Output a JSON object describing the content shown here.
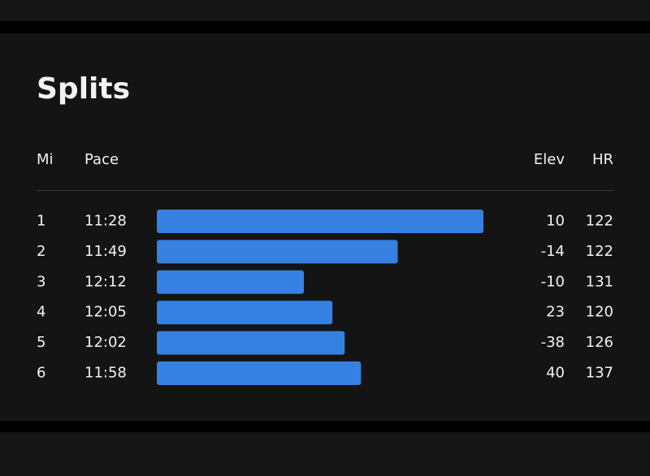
{
  "title": "Splits",
  "columns": [
    "Mi",
    "Pace",
    "Elev",
    "HR"
  ],
  "rows": [
    {
      "mi": 1,
      "pace": "11:28",
      "elev": 10,
      "hr": 122
    },
    {
      "mi": 2,
      "pace": "11:49",
      "elev": -14,
      "hr": 122
    },
    {
      "mi": 3,
      "pace": "12:12",
      "elev": -10,
      "hr": 131
    },
    {
      "mi": 4,
      "pace": "12:05",
      "elev": 23,
      "hr": 120
    },
    {
      "mi": 5,
      "pace": "12:02",
      "elev": -38,
      "hr": 126
    },
    {
      "mi": 6,
      "pace": "11:58",
      "elev": 40,
      "hr": 137
    }
  ]
}
